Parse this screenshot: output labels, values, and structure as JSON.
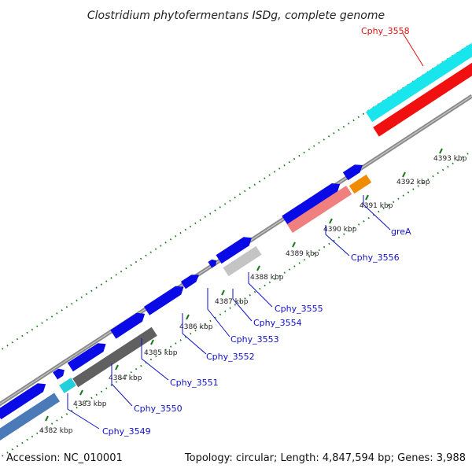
{
  "title": "Clostridium phytofermentans ISDg, complete genome",
  "footer": {
    "accession": "Accession: NC_010001",
    "summary": "Topology: circular; Length: 4,847,594 bp; Genes: 3,988"
  },
  "colors": {
    "background": "#ffffff",
    "backbone": "#888888",
    "tick": "#1a7a1a",
    "label_blue": "#1010c8",
    "label_red": "#e01010"
  },
  "scale_labels": [
    "4382 kbp",
    "4383 kbp",
    "4384 kbp",
    "4385 kbp",
    "4386 kbp",
    "4387 kbp",
    "4388 kbp",
    "4389 kbp",
    "4390 kbp",
    "4391 kbp",
    "4392 kbp",
    "4393 kbp"
  ],
  "gene_labels": [
    {
      "text": "Cphy_3549",
      "color": "blue"
    },
    {
      "text": "Cphy_3550",
      "color": "blue"
    },
    {
      "text": "Cphy_3551",
      "color": "blue"
    },
    {
      "text": "Cphy_3552",
      "color": "blue"
    },
    {
      "text": "Cphy_3553",
      "color": "blue"
    },
    {
      "text": "Cphy_3554",
      "color": "blue"
    },
    {
      "text": "Cphy_3555",
      "color": "blue"
    },
    {
      "text": "Cphy_3556",
      "color": "blue"
    },
    {
      "text": "greA",
      "color": "blue"
    },
    {
      "text": "Cphy_3558",
      "color": "red"
    }
  ],
  "feature_colors": {
    "cds_forward": "#0a0ae6",
    "cds_steel": "#4b7ab8",
    "cds_cyan": "#22d0dc",
    "cds_darkgray": "#606060",
    "cds_lightgray": "#c4c4c4",
    "cds_pink": "#f08080",
    "cds_orange": "#f08c00",
    "cds_red": "#f01010",
    "cds_cyan_big": "#19e5ec"
  }
}
